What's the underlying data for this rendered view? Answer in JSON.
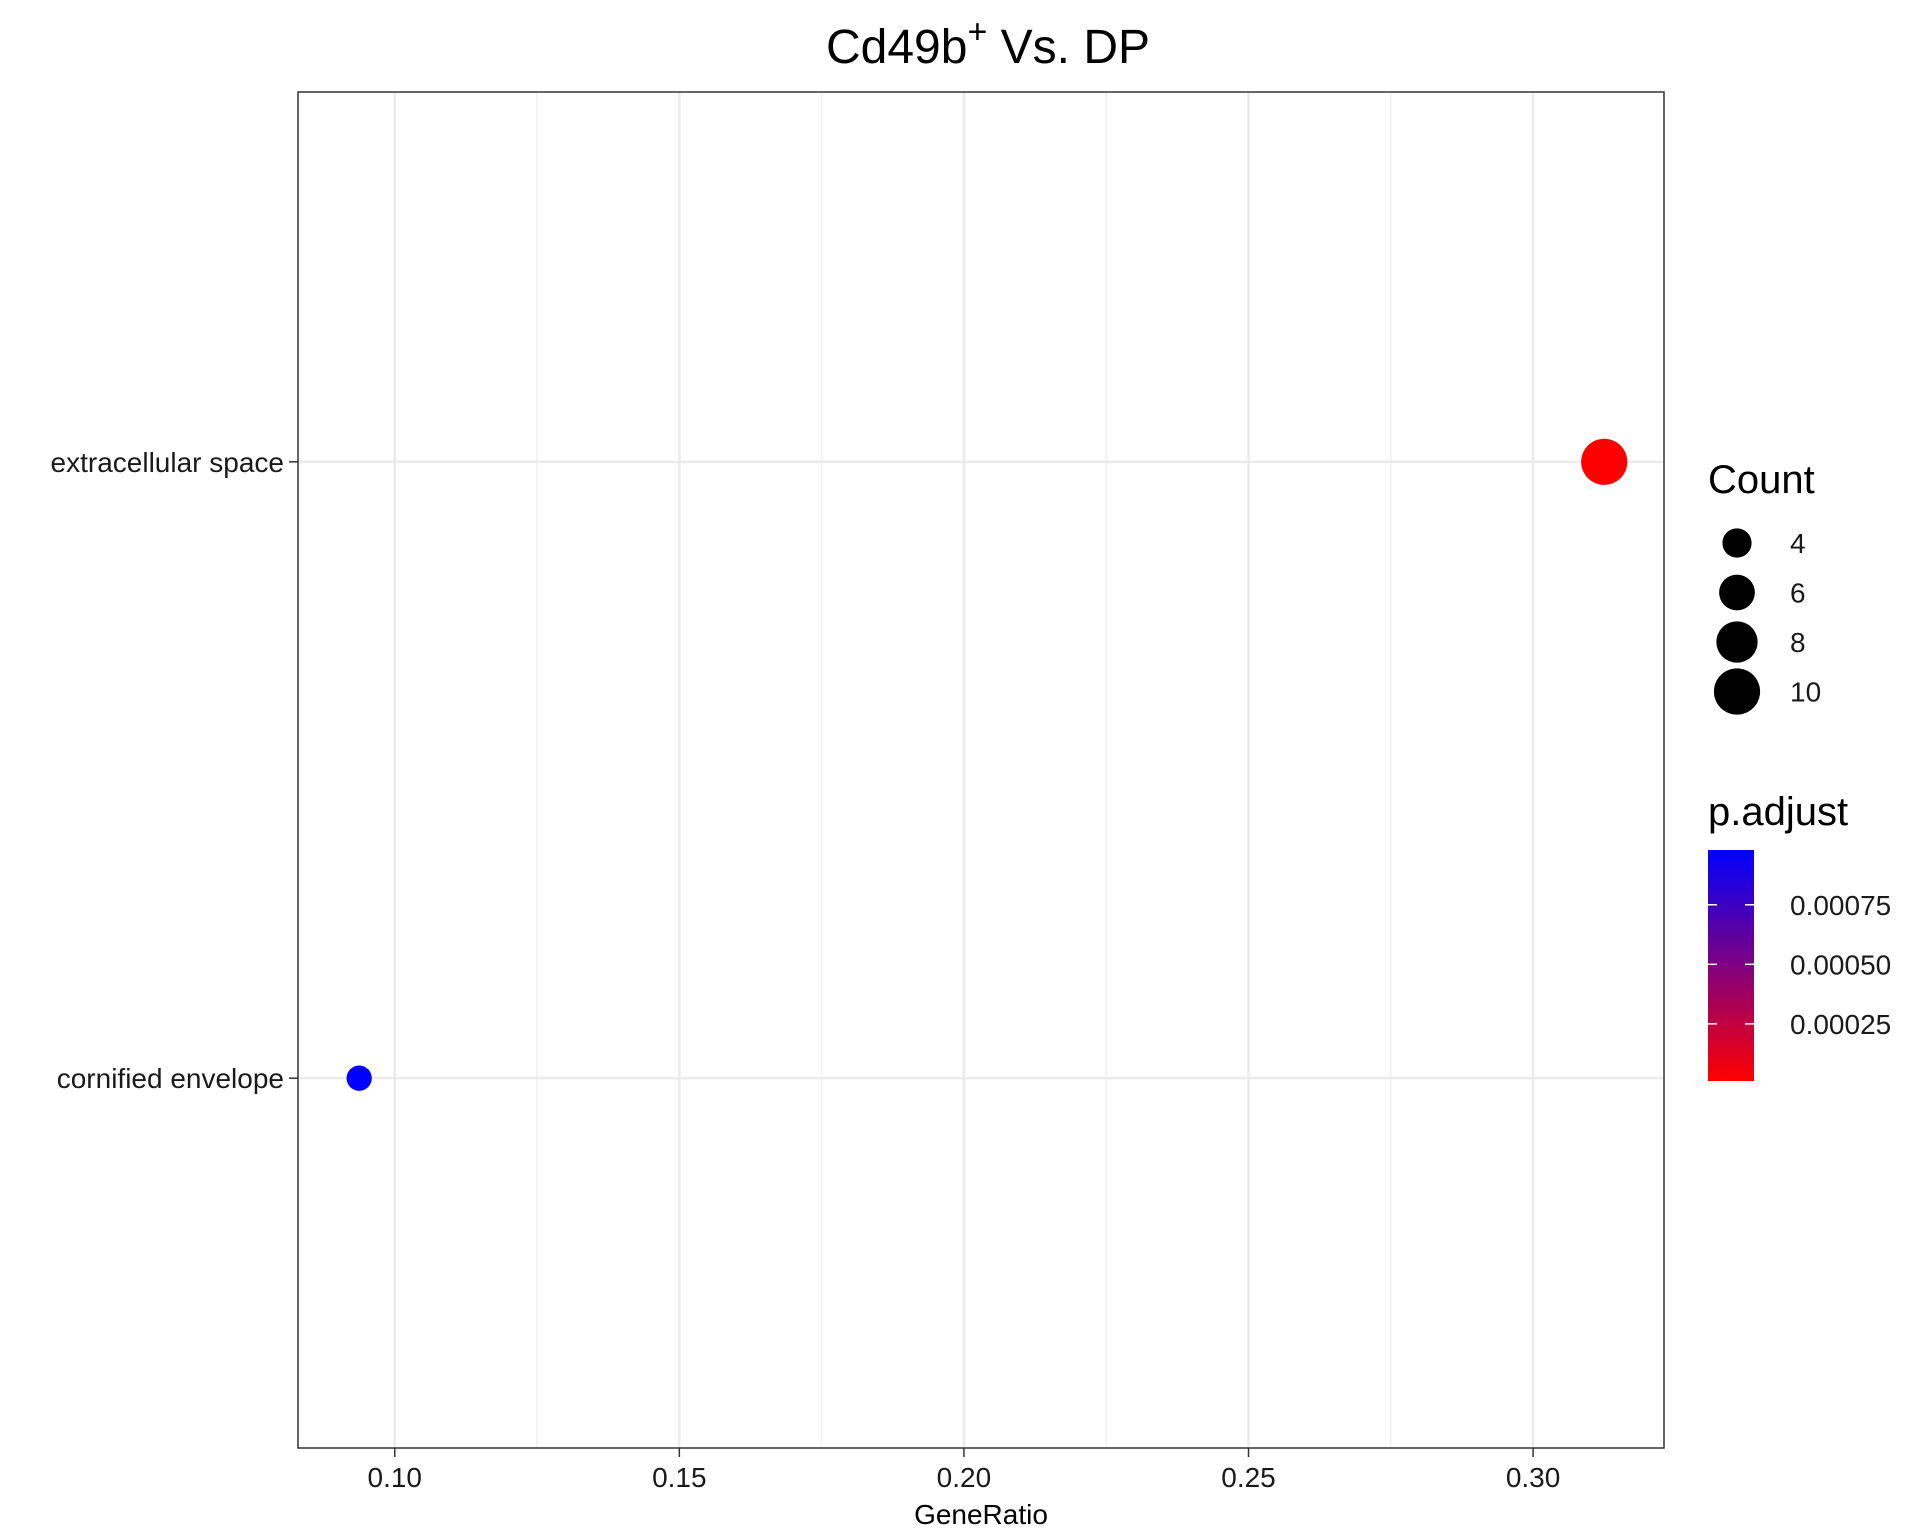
{
  "chart_data": {
    "type": "scatter",
    "title": "Cd49b",
    "title_superscript": "+",
    "title_suffix": " Vs. DP",
    "xlabel": "GeneRatio",
    "ylabel": "",
    "xlim": [
      0.083,
      0.323
    ],
    "x_ticks": [
      {
        "value": 0.1,
        "label": "0.10"
      },
      {
        "value": 0.15,
        "label": "0.15"
      },
      {
        "value": 0.2,
        "label": "0.20"
      },
      {
        "value": 0.25,
        "label": "0.25"
      },
      {
        "value": 0.3,
        "label": "0.30"
      }
    ],
    "x_minor_ticks": [
      0.125,
      0.175,
      0.225,
      0.275
    ],
    "categories": [
      "extracellular space",
      "cornified envelope"
    ],
    "points": [
      {
        "term": "extracellular space",
        "gene_ratio": 0.3125,
        "count": 10,
        "p_adjust": 1e-05,
        "color": "#ff0000"
      },
      {
        "term": "cornified envelope",
        "gene_ratio": 0.09375,
        "count": 3,
        "p_adjust": 0.00098,
        "color": "#0000ff"
      }
    ],
    "grid": true,
    "legend": {
      "placement": "right",
      "size": {
        "title": "Count",
        "entries": [
          {
            "label": "4",
            "value": 4
          },
          {
            "label": "6",
            "value": 6
          },
          {
            "label": "8",
            "value": 8
          },
          {
            "label": "10",
            "value": 10
          }
        ]
      },
      "color": {
        "title": "p.adjust",
        "low_color": "#ff0000",
        "high_color": "#0000ff",
        "range": [
          1e-05,
          0.00098
        ],
        "ticks": [
          {
            "label": "0.00075",
            "value": 0.00075
          },
          {
            "label": "0.00050",
            "value": 0.0005
          },
          {
            "label": "0.00025",
            "value": 0.00025
          }
        ]
      }
    }
  }
}
